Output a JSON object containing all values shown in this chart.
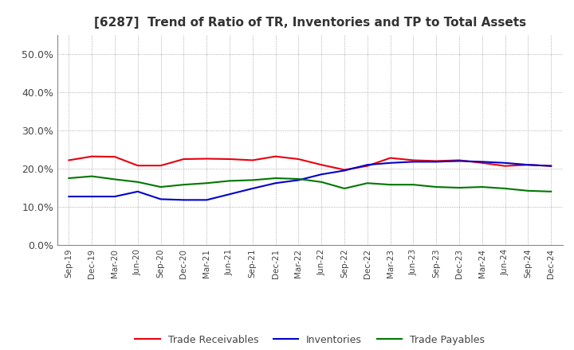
{
  "title": "[6287]  Trend of Ratio of TR, Inventories and TP to Total Assets",
  "x_labels": [
    "Sep-19",
    "Dec-19",
    "Mar-20",
    "Jun-20",
    "Sep-20",
    "Dec-20",
    "Mar-21",
    "Jun-21",
    "Sep-21",
    "Dec-21",
    "Mar-22",
    "Jun-22",
    "Sep-22",
    "Dec-22",
    "Mar-23",
    "Jun-23",
    "Sep-23",
    "Dec-23",
    "Mar-24",
    "Jun-24",
    "Sep-24",
    "Dec-24"
  ],
  "trade_receivables": [
    0.222,
    0.232,
    0.231,
    0.208,
    0.208,
    0.225,
    0.226,
    0.225,
    0.222,
    0.232,
    0.225,
    0.21,
    0.197,
    0.207,
    0.228,
    0.222,
    0.22,
    0.222,
    0.215,
    0.207,
    0.21,
    0.207
  ],
  "inventories": [
    0.127,
    0.127,
    0.127,
    0.14,
    0.12,
    0.118,
    0.118,
    0.133,
    0.148,
    0.162,
    0.17,
    0.185,
    0.195,
    0.21,
    0.215,
    0.218,
    0.218,
    0.22,
    0.218,
    0.215,
    0.21,
    0.207
  ],
  "trade_payables": [
    0.175,
    0.18,
    0.172,
    0.165,
    0.152,
    0.158,
    0.162,
    0.168,
    0.17,
    0.175,
    0.173,
    0.165,
    0.148,
    0.162,
    0.158,
    0.158,
    0.152,
    0.15,
    0.152,
    0.148,
    0.142,
    0.14
  ],
  "colors": {
    "trade_receivables": "#e8000d",
    "inventories": "#0000cc",
    "trade_payables": "#007700"
  },
  "ylim": [
    0.0,
    0.55
  ],
  "yticks": [
    0.0,
    0.1,
    0.2,
    0.3,
    0.4,
    0.5
  ],
  "background_color": "#ffffff",
  "grid_color": "#999999",
  "tick_color": "#444444",
  "title_color": "#333333",
  "legend_labels": [
    "Trade Receivables",
    "Inventories",
    "Trade Payables"
  ]
}
